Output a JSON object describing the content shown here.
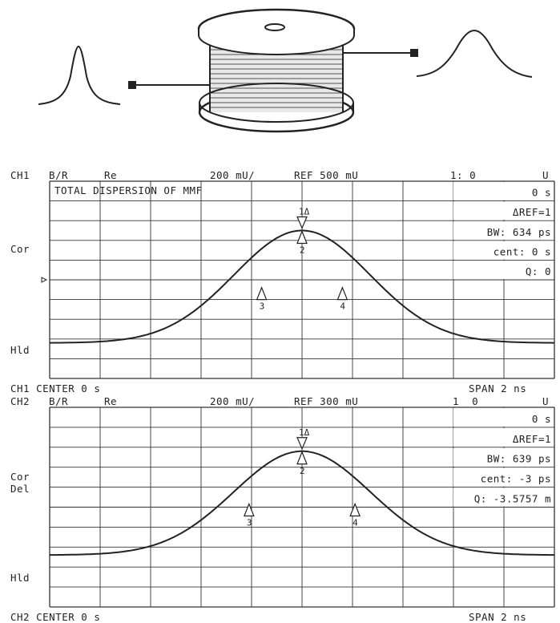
{
  "chart_data": [
    {
      "type": "line",
      "channel": "CH1",
      "title": "TOTAL DISPERSION OF MMF",
      "header": {
        "ch": "CH1",
        "meas": "B/R",
        "fmt": "Re",
        "scale": "200 mU/",
        "ref": "REF 500 mU",
        "marker": "1: 0",
        "unit": "U"
      },
      "footer": {
        "center": "CH1 CENTER 0 s",
        "span": "SPAN 2 ns"
      },
      "side_labels": [
        "Cor",
        "Hld"
      ],
      "readouts": [
        "0 s",
        "ΔREF=1",
        "BW: 634 ps",
        "cent: 0 s",
        "Q: 0"
      ],
      "xlim": [
        -1,
        1
      ],
      "ylim": [
        -0.5,
        1.5
      ],
      "x_unit": "ns",
      "y_unit": "U",
      "baseline": -0.14,
      "peak": 1.0,
      "peak_x": 0.0,
      "fwhm_ns": 0.634,
      "markers": [
        {
          "label": "1",
          "x": 0.0,
          "y": 1.0,
          "dir": "down",
          "tag": "Δ"
        },
        {
          "label": "2",
          "x": 0.0,
          "y": 1.0,
          "dir": "up"
        },
        {
          "label": "3",
          "x": -0.16,
          "y": 0.43,
          "dir": "up"
        },
        {
          "label": "4",
          "x": 0.16,
          "y": 0.43,
          "dir": "up"
        }
      ],
      "grid": true,
      "grid_cols": 10,
      "grid_rows": 10
    },
    {
      "type": "line",
      "channel": "CH2",
      "title": "",
      "header": {
        "ch": "CH2",
        "meas": "B/R",
        "fmt": "Re",
        "scale": "200 mU/",
        "ref": "REF 300 mU",
        "marker": "1  0",
        "unit": "U"
      },
      "footer": {
        "center": "CH2 CENTER 0 s",
        "span": "SPAN 2 ns"
      },
      "side_labels": [
        "Cor",
        "Del",
        "Hld"
      ],
      "readouts": [
        "0 s",
        "ΔREF=1",
        "BW: 639 ps",
        "cent: -3 ps",
        "Q: -3.5757 m"
      ],
      "xlim": [
        -1,
        1
      ],
      "ylim": [
        -0.5,
        1.5
      ],
      "x_unit": "ns",
      "y_unit": "U",
      "baseline": 0.02,
      "peak": 1.06,
      "peak_x": 0.0,
      "fwhm_ns": 0.639,
      "markers": [
        {
          "label": "1",
          "x": 0.0,
          "y": 1.06,
          "dir": "down",
          "tag": "Δ"
        },
        {
          "label": "2",
          "x": 0.0,
          "y": 1.06,
          "dir": "up"
        },
        {
          "label": "3",
          "x": -0.21,
          "y": 0.54,
          "dir": "up"
        },
        {
          "label": "4",
          "x": 0.21,
          "y": 0.54,
          "dir": "up"
        }
      ],
      "grid": true,
      "grid_cols": 10,
      "grid_rows": 10
    }
  ]
}
